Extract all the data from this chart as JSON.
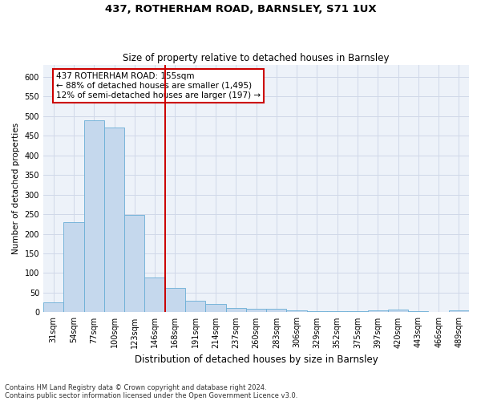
{
  "title1": "437, ROTHERHAM ROAD, BARNSLEY, S71 1UX",
  "title2": "Size of property relative to detached houses in Barnsley",
  "xlabel": "Distribution of detached houses by size in Barnsley",
  "ylabel": "Number of detached properties",
  "categories": [
    "31sqm",
    "54sqm",
    "77sqm",
    "100sqm",
    "123sqm",
    "146sqm",
    "168sqm",
    "191sqm",
    "214sqm",
    "237sqm",
    "260sqm",
    "283sqm",
    "306sqm",
    "329sqm",
    "352sqm",
    "375sqm",
    "397sqm",
    "420sqm",
    "443sqm",
    "466sqm",
    "489sqm"
  ],
  "values": [
    25,
    230,
    490,
    470,
    248,
    88,
    62,
    30,
    22,
    12,
    10,
    10,
    5,
    3,
    3,
    2,
    5,
    7,
    2,
    1,
    4
  ],
  "bar_color": "#c5d8ed",
  "bar_edge_color": "#6aaed6",
  "grid_color": "#d0d8e8",
  "vline_x": 5.5,
  "vline_color": "#cc0000",
  "annotation_text": "437 ROTHERHAM ROAD: 155sqm\n← 88% of detached houses are smaller (1,495)\n12% of semi-detached houses are larger (197) →",
  "annotation_box_color": "#ffffff",
  "annotation_box_edge": "#cc0000",
  "ylim": [
    0,
    630
  ],
  "yticks": [
    0,
    50,
    100,
    150,
    200,
    250,
    300,
    350,
    400,
    450,
    500,
    550,
    600
  ],
  "footnote1": "Contains HM Land Registry data © Crown copyright and database right 2024.",
  "footnote2": "Contains public sector information licensed under the Open Government Licence v3.0.",
  "bg_color": "#ffffff",
  "plot_bg_color": "#edf2f9",
  "title1_fontsize": 9.5,
  "title2_fontsize": 8.5,
  "ylabel_fontsize": 7.5,
  "xlabel_fontsize": 8.5,
  "tick_fontsize": 7,
  "annot_fontsize": 7.5,
  "footnote_fontsize": 6
}
